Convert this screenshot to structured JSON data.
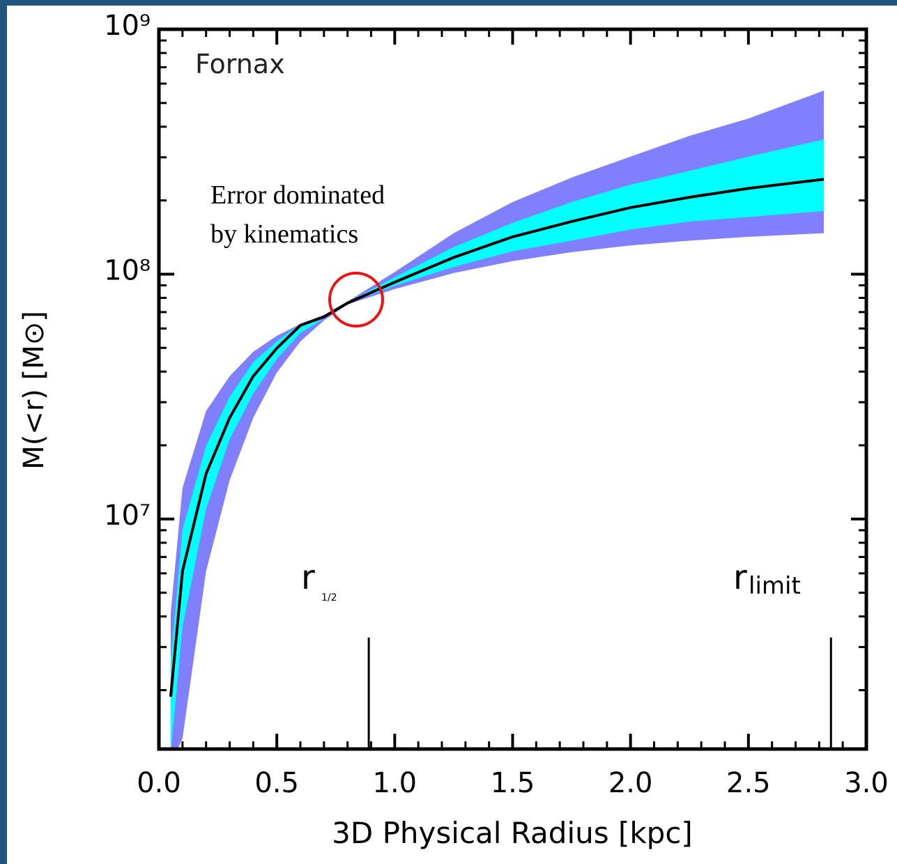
{
  "chart_data": {
    "type": "band",
    "label": "Fornax",
    "note": [
      "Error dominated",
      "by kinematics"
    ],
    "xlabel": "3D Physical Radius [kpc]",
    "ylabel": "M(<r) [M⊙]",
    "x": [
      0.05,
      0.1,
      0.2,
      0.3,
      0.4,
      0.5,
      0.6,
      0.7,
      0.8,
      1.0,
      1.25,
      1.5,
      1.75,
      2.0,
      2.25,
      2.5,
      2.82
    ],
    "bands": [
      {
        "color": "#8080ff",
        "upper": [
          4130000.0,
          13400000.0,
          27600000.0,
          38300000.0,
          48200000.0,
          56000000.0,
          62600000.0,
          68200000.0,
          77300000.0,
          102000000.0,
          147000000.0,
          197000000.0,
          248000000.0,
          302000000.0,
          367000000.0,
          432000000.0,
          562000000.0
        ],
        "lower": [
          1000000.0,
          1270000.0,
          6120000.0,
          14400000.0,
          25900000.0,
          39600000.0,
          53100000.0,
          64700000.0,
          75200000.0,
          86900000.0,
          101000000.0,
          113000000.0,
          123000000.0,
          131000000.0,
          137000000.0,
          142000000.0,
          147000000.0
        ]
      },
      {
        "color": "#00ffff",
        "upper": [
          2610000.0,
          9060000.0,
          19900000.0,
          31500000.0,
          43700000.0,
          53100000.0,
          62600000.0,
          67800000.0,
          76700000.0,
          97100000.0,
          129000000.0,
          162000000.0,
          197000000.0,
          232000000.0,
          264000000.0,
          302000000.0,
          355000000.0
        ],
        "lower": [
          1100000.0,
          3620000.0,
          11000000.0,
          21200000.0,
          32500000.0,
          45100000.0,
          57500000.0,
          65900000.0,
          75700000.0,
          89700000.0,
          107000000.0,
          124000000.0,
          137000000.0,
          152000000.0,
          164000000.0,
          171000000.0,
          181000000.0
        ]
      }
    ],
    "line": {
      "color": "#000000",
      "values": [
        1880000.0,
        6120000.0,
        15300000.0,
        25900000.0,
        38300000.0,
        49800000.0,
        61800000.0,
        66900000.0,
        76200000.0,
        92700000.0,
        117000000.0,
        142000000.0,
        164000000.0,
        187000000.0,
        206000000.0,
        224000000.0,
        244000000.0
      ]
    },
    "markers": [
      {
        "x": 0.89,
        "label": "r",
        "sub": "1/2"
      },
      {
        "x": 2.85,
        "label": "r",
        "sub": "limit"
      }
    ],
    "xlim": [
      0,
      3
    ],
    "xticks": [
      {
        "value": 0,
        "label": "0.0"
      },
      0.5,
      {
        "value": 1,
        "label": "1.0"
      },
      1.5,
      {
        "value": 2,
        "label": "2.0"
      },
      2.5,
      {
        "value": 3,
        "label": "3.0"
      }
    ],
    "xminorticks": [
      0.1,
      0.2,
      0.3,
      0.4,
      0.6,
      0.7,
      0.8,
      0.9,
      1.1,
      1.2,
      1.3,
      1.4,
      1.6,
      1.7,
      1.8,
      1.9,
      2.1,
      2.2,
      2.3,
      2.4,
      2.6,
      2.7,
      2.8,
      2.9
    ],
    "ylim": [
      1150000.0,
      1000000000.0
    ],
    "ylog": true,
    "yticks": [
      {
        "value": 10000000.0,
        "label": "10⁷"
      },
      {
        "value": 100000000.0,
        "label": "10⁸"
      },
      {
        "value": 1000000000.0,
        "label": "10⁹"
      }
    ],
    "yminorticks": [
      2000000.0,
      3000000.0,
      4000000.0,
      5000000.0,
      6000000.0,
      7000000.0,
      8000000.0,
      9000000.0,
      20000000.0,
      30000000.0,
      40000000.0,
      50000000.0,
      60000000.0,
      70000000.0,
      80000000.0,
      90000000.0,
      200000000.0,
      300000000.0,
      400000000.0,
      500000000.0,
      600000000.0,
      700000000.0,
      800000000.0,
      900000000.0
    ]
  }
}
